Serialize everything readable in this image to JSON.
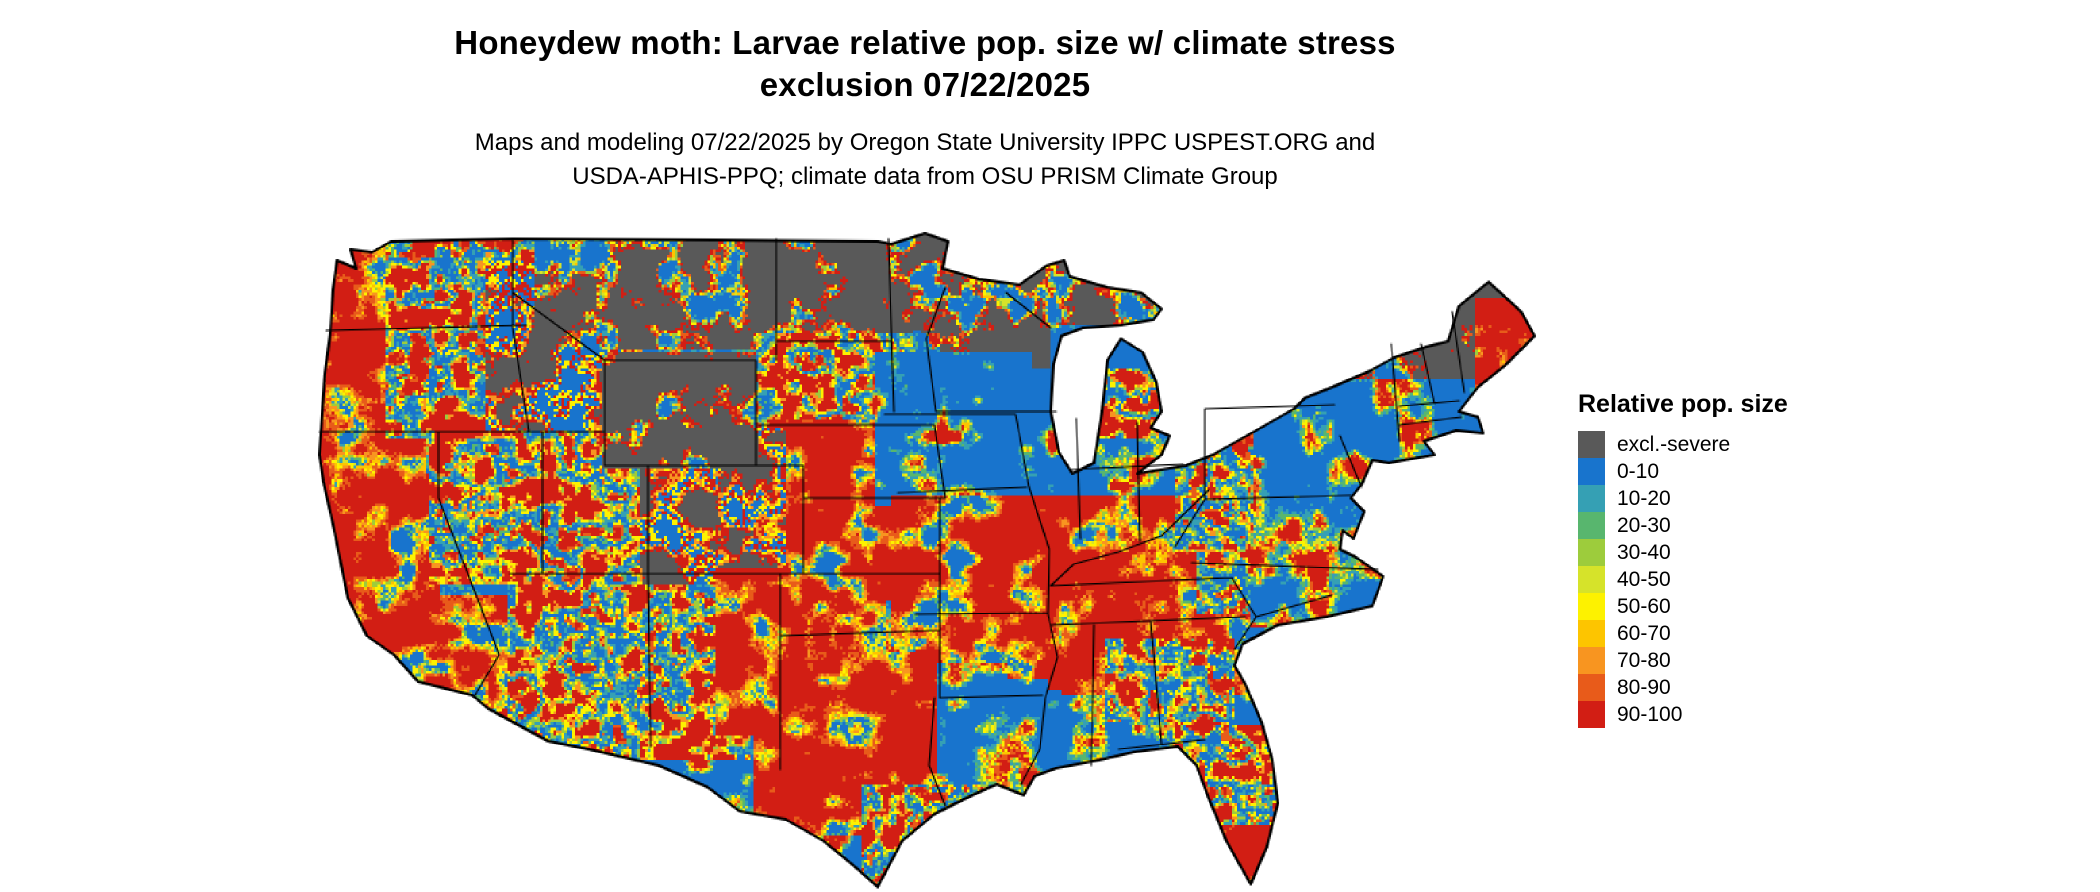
{
  "title": {
    "line1": "Honeydew moth: Larvae relative pop. size w/ climate stress",
    "line2": "exclusion 07/22/2025"
  },
  "subtitle": {
    "line1": "Maps and modeling 07/22/2025 by Oregon State University IPPC USPEST.ORG and",
    "line2": "USDA-APHIS-PPQ; climate data from OSU PRISM Climate Group"
  },
  "legend": {
    "title": "Relative pop. size",
    "entries": [
      {
        "label": "excl.-severe",
        "color": "#595959"
      },
      {
        "label": "0-10",
        "color": "#1874CD"
      },
      {
        "label": "10-20",
        "color": "#35A0B4"
      },
      {
        "label": "20-30",
        "color": "#58B66E"
      },
      {
        "label": "30-40",
        "color": "#9DCC3C"
      },
      {
        "label": "40-50",
        "color": "#D6E32A"
      },
      {
        "label": "50-60",
        "color": "#FDF200"
      },
      {
        "label": "60-70",
        "color": "#FDC500"
      },
      {
        "label": "70-80",
        "color": "#F89520"
      },
      {
        "label": "80-90",
        "color": "#E85B1A"
      },
      {
        "label": "90-100",
        "color": "#D21E14"
      }
    ]
  },
  "map": {
    "region": "Contiguous United States",
    "border_color": "#000000",
    "water_background": "#FFFFFF"
  }
}
